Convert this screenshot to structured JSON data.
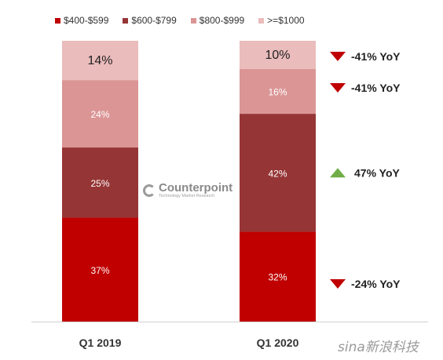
{
  "legend": [
    {
      "label": "$400-$599",
      "color": "#c00000"
    },
    {
      "label": "$600-$799",
      "color": "#963535"
    },
    {
      "label": "$800-$999",
      "color": "#db9595"
    },
    {
      "label": ">=$1000",
      "color": "#ebbcbc"
    }
  ],
  "watermark": {
    "brand": "Counterpoint",
    "sub": "Technology Market Research"
  },
  "sina_logo": "sina新浪科技",
  "chart_data": {
    "type": "bar",
    "stacked": true,
    "categories": [
      "Q1 2019",
      "Q1 2020"
    ],
    "ylim": [
      0,
      100
    ],
    "series": [
      {
        "name": "$400-$599",
        "color": "#c00000",
        "values": [
          37,
          32
        ],
        "labels": [
          "37%",
          "32%"
        ]
      },
      {
        "name": "$600-$799",
        "color": "#963535",
        "values": [
          25,
          42
        ],
        "labels": [
          "25%",
          "42%"
        ]
      },
      {
        "name": "$800-$999",
        "color": "#db9595",
        "values": [
          24,
          16
        ],
        "labels": [
          "24%",
          "16%"
        ]
      },
      {
        "name": ">=$1000",
        "color": "#ebbcbc",
        "values": [
          14,
          10
        ],
        "labels": [
          "14%",
          "10%"
        ]
      }
    ],
    "annotations": [
      {
        "series": ">=$1000",
        "text": "-41% YoY",
        "direction": "down",
        "color": "#c00000"
      },
      {
        "series": "$800-$999",
        "text": "-41% YoY",
        "direction": "down",
        "color": "#c00000"
      },
      {
        "series": "$600-$799",
        "text": "47% YoY",
        "direction": "up",
        "color": "#70ad47"
      },
      {
        "series": "$400-$599",
        "text": "-24% YoY",
        "direction": "down",
        "color": "#c00000"
      }
    ]
  }
}
